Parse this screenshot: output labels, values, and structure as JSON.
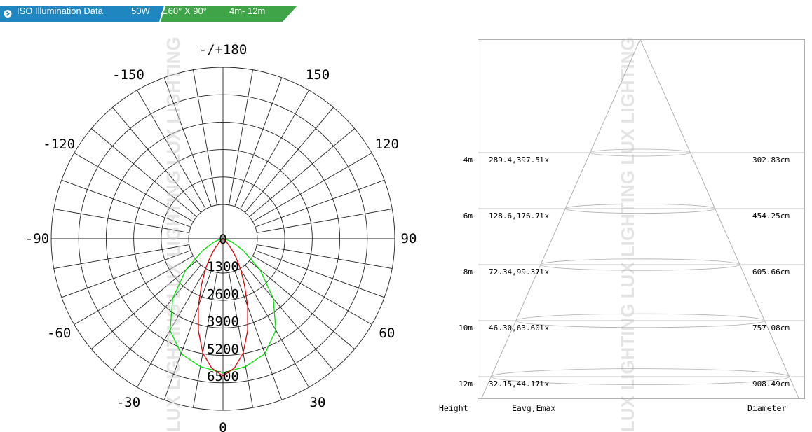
{
  "banner": {
    "title": "ISO Illumination  Data",
    "power": "50W",
    "angle": "∠60°  X 90°",
    "range": "4m- 12m",
    "icon": "chevron-right-icon",
    "colors": {
      "blue": "#1f86bf",
      "green": "#3fa447"
    }
  },
  "watermark": "LUX LIGHTING",
  "chart_data": [
    {
      "type": "polar",
      "angle_labels": [
        {
          "deg": 180,
          "text": "-/+180"
        },
        {
          "deg": -150,
          "text": "-150"
        },
        {
          "deg": 150,
          "text": "150"
        },
        {
          "deg": -120,
          "text": "-120"
        },
        {
          "deg": 120,
          "text": "120"
        },
        {
          "deg": -90,
          "text": "-90"
        },
        {
          "deg": 90,
          "text": "90"
        },
        {
          "deg": -60,
          "text": "-60"
        },
        {
          "deg": 60,
          "text": "60"
        },
        {
          "deg": -30,
          "text": "-30"
        },
        {
          "deg": 30,
          "text": "30"
        },
        {
          "deg": 0,
          "text": "0"
        }
      ],
      "radial_ticks": [
        "0",
        "1300",
        "2600",
        "3900",
        "5200",
        "6500"
      ],
      "rmax": 6500,
      "grid": true,
      "series": [
        {
          "color": "#00e000",
          "points": [
            [
              0,
              6350
            ],
            [
              10,
              6150
            ],
            [
              20,
              5800
            ],
            [
              30,
              5000
            ],
            [
              40,
              3700
            ],
            [
              50,
              2300
            ],
            [
              60,
              1100
            ],
            [
              70,
              450
            ],
            [
              80,
              150
            ],
            [
              90,
              0
            ]
          ]
        },
        {
          "color": "#e00000",
          "points": [
            [
              0,
              6500
            ],
            [
              5,
              6150
            ],
            [
              10,
              5500
            ],
            [
              15,
              4500
            ],
            [
              20,
              3400
            ],
            [
              25,
              2400
            ],
            [
              30,
              1650
            ],
            [
              35,
              1050
            ],
            [
              40,
              600
            ],
            [
              50,
              200
            ],
            [
              60,
              60
            ],
            [
              90,
              0
            ]
          ]
        }
      ]
    },
    {
      "type": "table",
      "columns": [
        "Height",
        "Eavg,Emax",
        "Diameter"
      ],
      "rows": [
        {
          "height": "4m",
          "e": "289.4,397.5lx",
          "diameter": "302.83cm"
        },
        {
          "height": "6m",
          "e": "128.6,176.7lx",
          "diameter": "454.25cm"
        },
        {
          "height": "8m",
          "e": "72.34,99.37lx",
          "diameter": "605.66cm"
        },
        {
          "height": "10m",
          "e": "46.30,63.60lx",
          "diameter": "757.08cm"
        },
        {
          "height": "12m",
          "e": "32.15,44.17lx",
          "diameter": "908.49cm"
        }
      ]
    }
  ]
}
